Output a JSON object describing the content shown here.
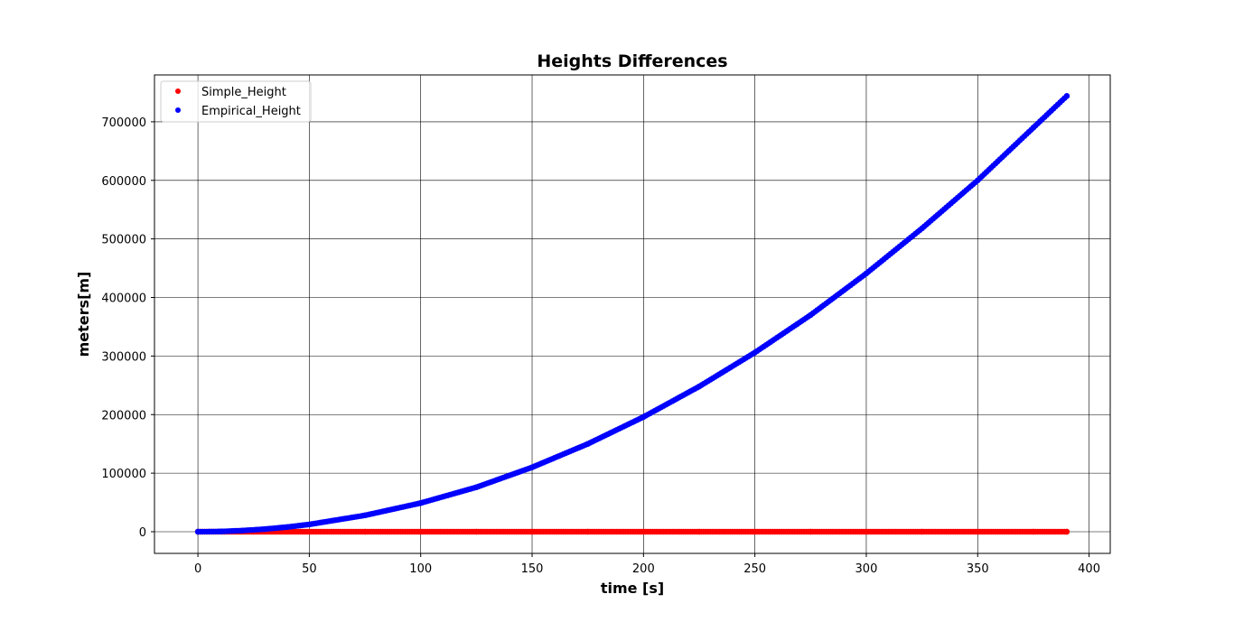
{
  "chart_data": {
    "type": "scatter",
    "title": "Heights Differences",
    "xlabel": "time [s]",
    "ylabel": "meters[m]",
    "xlim": [
      -19.5,
      409.5
    ],
    "ylim": [
      -37000,
      780000
    ],
    "x_ticks": [
      0,
      50,
      100,
      150,
      200,
      250,
      300,
      350,
      400
    ],
    "y_ticks": [
      0,
      100000,
      200000,
      300000,
      400000,
      500000,
      600000,
      700000
    ],
    "grid": true,
    "legend_position": "upper-left",
    "series": [
      {
        "name": "Simple_Height",
        "color": "#ff0000",
        "marker": "dot",
        "x": [
          0,
          25,
          50,
          75,
          100,
          125,
          150,
          175,
          200,
          225,
          250,
          275,
          300,
          325,
          350,
          375,
          390
        ],
        "y": [
          0,
          0,
          0,
          0,
          0,
          0,
          0,
          0,
          0,
          0,
          0,
          0,
          0,
          0,
          0,
          0,
          0
        ]
      },
      {
        "name": "Empirical_Height",
        "color": "#0000ff",
        "marker": "dot",
        "x": [
          0,
          10,
          20,
          30,
          40,
          50,
          75,
          100,
          125,
          150,
          175,
          200,
          225,
          250,
          275,
          300,
          325,
          350,
          375,
          390
        ],
        "y": [
          0,
          400,
          2000,
          4500,
          8000,
          12500,
          28000,
          49000,
          76000,
          110000,
          150000,
          196000,
          248000,
          306000,
          370000,
          441000,
          518000,
          600000,
          690000,
          744000
        ]
      }
    ]
  }
}
